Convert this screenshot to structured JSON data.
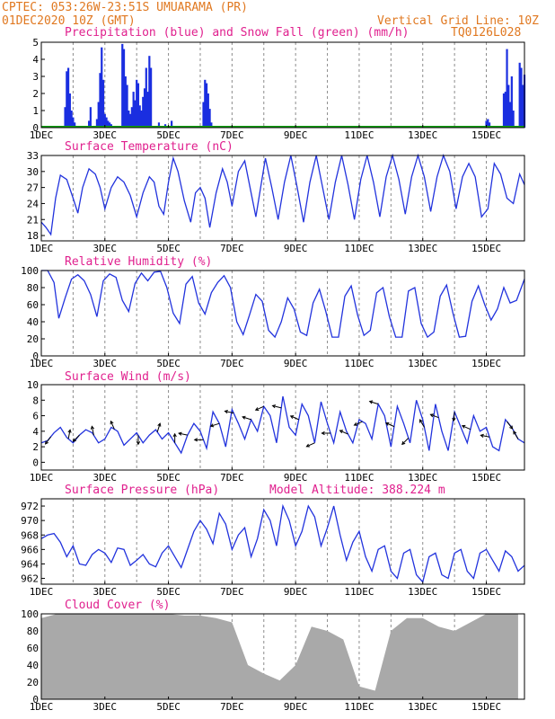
{
  "header": {
    "line1": "CPTEC:   053:26W-23:51S  UMUARAMA (PR)",
    "line2": "01DEC2020 10Z (GMT)",
    "grid_note": "Vertical Grid Line: 10Z",
    "code": "TQ0126L028"
  },
  "colors": {
    "header": "#e07820",
    "panel_title": "#e0208e",
    "line": "#2233dd",
    "precip": "#1a2ee0",
    "snow": "#10a010",
    "cloud": "#a9a9a9",
    "wind_arrow": "#000000"
  },
  "x_axis": {
    "labels": [
      "1DEC",
      "3DEC",
      "5DEC",
      "7DEC",
      "9DEC",
      "11DEC",
      "13DEC",
      "15DEC"
    ],
    "label_days": [
      0,
      2,
      4,
      6,
      8,
      10,
      12,
      14
    ],
    "grid_days": [
      1,
      2,
      3,
      4,
      5,
      6,
      7,
      8,
      9,
      10,
      11,
      12,
      13,
      14
    ],
    "range_days": [
      0,
      15.2
    ]
  },
  "chart_data": [
    {
      "type": "bar",
      "title": "Precipitation (blue) and Snow Fall (green) (mm/h)",
      "ylim": [
        0,
        5
      ],
      "yticks": [
        0,
        1,
        2,
        3,
        4,
        5
      ],
      "x_unit": "days since 01DEC2020 10Z",
      "series": [
        {
          "name": "Precipitation",
          "x": [
            0.75,
            0.8,
            0.85,
            0.9,
            0.95,
            1.0,
            1.05,
            1.5,
            1.55,
            1.75,
            1.8,
            1.85,
            1.9,
            1.95,
            2.0,
            2.05,
            2.1,
            2.15,
            2.2,
            2.55,
            2.6,
            2.65,
            2.7,
            2.75,
            2.8,
            2.85,
            2.9,
            2.95,
            3.0,
            3.05,
            3.1,
            3.15,
            3.2,
            3.25,
            3.3,
            3.35,
            3.4,
            3.45,
            3.7,
            3.9,
            4.1,
            5.1,
            5.15,
            5.2,
            5.25,
            5.3,
            5.35,
            14.0,
            14.05,
            14.1,
            14.55,
            14.6,
            14.65,
            14.7,
            14.75,
            14.8,
            14.85,
            15.05,
            15.1,
            15.15,
            15.2
          ],
          "values": [
            1.2,
            3.3,
            3.5,
            2.0,
            1.0,
            0.6,
            0.3,
            0.4,
            1.2,
            0.5,
            1.5,
            3.2,
            4.7,
            2.8,
            0.8,
            0.6,
            0.4,
            0.3,
            0.2,
            4.9,
            4.6,
            3.0,
            2.5,
            1.0,
            0.8,
            1.2,
            2.1,
            1.6,
            2.8,
            2.6,
            1.3,
            1.0,
            1.8,
            2.3,
            3.5,
            2.1,
            4.2,
            3.5,
            0.3,
            0.2,
            0.4,
            1.5,
            2.8,
            2.6,
            2.0,
            1.1,
            0.3,
            0.4,
            0.5,
            0.3,
            2.0,
            2.1,
            4.6,
            2.5,
            1.5,
            3.0,
            1.0,
            3.8,
            3.5,
            2.5,
            3.1
          ]
        },
        {
          "name": "Snow Fall",
          "x": [
            0,
            15.2
          ],
          "values": [
            0,
            0
          ]
        }
      ]
    },
    {
      "type": "line",
      "title": "Surface Temperature (nC)",
      "ylim": [
        17,
        33
      ],
      "yticks": [
        18,
        21,
        24,
        27,
        30,
        33
      ],
      "x": [
        0,
        0.15,
        0.3,
        0.45,
        0.6,
        0.8,
        1.0,
        1.15,
        1.3,
        1.5,
        1.7,
        1.85,
        2.0,
        2.2,
        2.4,
        2.6,
        2.8,
        3.0,
        3.2,
        3.4,
        3.55,
        3.7,
        3.85,
        4.0,
        4.15,
        4.3,
        4.5,
        4.7,
        4.85,
        5.0,
        5.15,
        5.3,
        5.5,
        5.7,
        5.85,
        6.0,
        6.2,
        6.4,
        6.6,
        6.75,
        6.9,
        7.05,
        7.25,
        7.45,
        7.65,
        7.85,
        8.05,
        8.25,
        8.45,
        8.65,
        8.85,
        9.05,
        9.25,
        9.45,
        9.65,
        9.85,
        10.05,
        10.25,
        10.45,
        10.65,
        10.85,
        11.05,
        11.25,
        11.45,
        11.65,
        11.85,
        12.05,
        12.25,
        12.45,
        12.65,
        12.85,
        13.05,
        13.25,
        13.45,
        13.65,
        13.85,
        14.05,
        14.25,
        14.45,
        14.65,
        14.85,
        15.05,
        15.2
      ],
      "values": [
        20.5,
        19.5,
        18.2,
        25.0,
        29.3,
        28.5,
        25.0,
        22.2,
        27.0,
        30.5,
        29.5,
        27.0,
        23.0,
        27.0,
        29.0,
        28.0,
        25.5,
        21.5,
        26.0,
        29.0,
        28.0,
        23.5,
        22.0,
        28.0,
        32.5,
        30.0,
        24.5,
        20.5,
        26.0,
        27.0,
        25.0,
        19.5,
        26.0,
        30.5,
        28.0,
        23.5,
        30.0,
        32.0,
        26.0,
        21.5,
        27.0,
        32.5,
        27.0,
        21.0,
        28.0,
        33.0,
        27.0,
        20.5,
        28.0,
        33.0,
        27.0,
        21.0,
        28.0,
        33.0,
        27.5,
        21.0,
        28.5,
        33.0,
        28.0,
        21.5,
        29.0,
        33.0,
        28.5,
        22.0,
        29.0,
        33.0,
        29.0,
        22.5,
        29.0,
        33.0,
        30.0,
        23.0,
        29.0,
        31.5,
        29.0,
        21.5,
        23.0,
        31.5,
        29.5,
        25.0,
        24.0,
        29.5,
        27.5
      ]
    },
    {
      "type": "line",
      "title": "Relative Humidity (%)",
      "ylim": [
        0,
        100
      ],
      "yticks": [
        0,
        20,
        40,
        60,
        80,
        100
      ],
      "x": [
        0,
        0.2,
        0.4,
        0.55,
        0.75,
        0.95,
        1.15,
        1.35,
        1.55,
        1.75,
        1.95,
        2.15,
        2.35,
        2.55,
        2.75,
        2.95,
        3.15,
        3.35,
        3.55,
        3.75,
        3.95,
        4.15,
        4.35,
        4.55,
        4.75,
        4.95,
        5.15,
        5.35,
        5.55,
        5.75,
        5.95,
        6.15,
        6.35,
        6.55,
        6.75,
        6.95,
        7.15,
        7.35,
        7.55,
        7.75,
        7.95,
        8.15,
        8.35,
        8.55,
        8.75,
        8.95,
        9.15,
        9.35,
        9.55,
        9.75,
        9.95,
        10.15,
        10.35,
        10.55,
        10.75,
        10.95,
        11.15,
        11.35,
        11.55,
        11.75,
        11.95,
        12.15,
        12.35,
        12.55,
        12.75,
        12.95,
        13.15,
        13.35,
        13.55,
        13.75,
        13.95,
        14.15,
        14.35,
        14.55,
        14.75,
        14.95,
        15.2
      ],
      "values": [
        100,
        100,
        86,
        44,
        68,
        90,
        95,
        88,
        72,
        46,
        88,
        96,
        92,
        65,
        52,
        85,
        97,
        88,
        98,
        99,
        80,
        50,
        38,
        84,
        93,
        62,
        49,
        74,
        86,
        94,
        80,
        40,
        25,
        48,
        72,
        64,
        30,
        22,
        40,
        68,
        55,
        28,
        24,
        62,
        78,
        52,
        22,
        22,
        70,
        82,
        48,
        24,
        30,
        74,
        80,
        46,
        22,
        22,
        76,
        80,
        38,
        22,
        28,
        70,
        83,
        50,
        22,
        23,
        64,
        82,
        60,
        42,
        55,
        80,
        62,
        65,
        90
      ]
    },
    {
      "type": "line",
      "title": "Surface Wind (m/s)",
      "ylim": [
        -1,
        10
      ],
      "yticks": [
        0,
        2,
        4,
        6,
        8,
        10
      ],
      "x": [
        0,
        0.2,
        0.4,
        0.6,
        0.8,
        1.0,
        1.2,
        1.4,
        1.6,
        1.8,
        2.0,
        2.2,
        2.4,
        2.6,
        2.8,
        3.0,
        3.2,
        3.4,
        3.6,
        3.8,
        4.0,
        4.2,
        4.4,
        4.6,
        4.8,
        5.0,
        5.2,
        5.4,
        5.6,
        5.8,
        6.0,
        6.2,
        6.4,
        6.6,
        6.8,
        7.0,
        7.2,
        7.4,
        7.6,
        7.8,
        8.0,
        8.2,
        8.4,
        8.6,
        8.8,
        9.0,
        9.2,
        9.4,
        9.6,
        9.8,
        10.0,
        10.2,
        10.4,
        10.6,
        10.8,
        11.0,
        11.2,
        11.4,
        11.6,
        11.8,
        12.0,
        12.2,
        12.4,
        12.6,
        12.8,
        13.0,
        13.2,
        13.4,
        13.6,
        13.8,
        14.0,
        14.2,
        14.4,
        14.6,
        14.8,
        15.0,
        15.2
      ],
      "values": [
        2.5,
        2.8,
        3.8,
        4.5,
        3.2,
        2.5,
        3.5,
        4.2,
        3.8,
        2.5,
        3.0,
        4.5,
        4.0,
        2.2,
        3.0,
        3.8,
        2.5,
        3.5,
        4.2,
        3.0,
        3.8,
        2.5,
        1.2,
        3.5,
        5.0,
        4.0,
        1.8,
        6.5,
        5.0,
        2.0,
        6.8,
        5.0,
        3.0,
        5.5,
        4.0,
        7.2,
        6.0,
        2.5,
        8.5,
        4.5,
        3.5,
        7.5,
        6.0,
        2.5,
        7.8,
        5.0,
        2.5,
        6.5,
        4.0,
        2.5,
        5.5,
        5.0,
        3.0,
        7.5,
        6.0,
        2.0,
        7.2,
        5.0,
        2.5,
        8.0,
        5.5,
        1.5,
        7.5,
        4.0,
        1.5,
        6.5,
        4.5,
        2.5,
        6.0,
        4.0,
        4.5,
        2.0,
        1.5,
        5.5,
        4.5,
        3.0,
        2.5
      ],
      "arrows": [
        {
          "x": 0.3,
          "u": -0.6,
          "v": -0.8
        },
        {
          "x": 0.85,
          "u": 0.2,
          "v": 1.0
        },
        {
          "x": 1.2,
          "u": -0.7,
          "v": -0.7
        },
        {
          "x": 1.65,
          "u": -0.2,
          "v": 1.0
        },
        {
          "x": 2.3,
          "u": -0.4,
          "v": 0.9
        },
        {
          "x": 3.05,
          "u": 0.0,
          "v": -1.0
        },
        {
          "x": 3.65,
          "u": 0.3,
          "v": 0.95
        },
        {
          "x": 4.2,
          "u": 0.0,
          "v": 1.0
        },
        {
          "x": 4.6,
          "u": -0.97,
          "v": 0.2
        },
        {
          "x": 5.1,
          "u": -0.98,
          "v": 0.0
        },
        {
          "x": 5.6,
          "u": -0.95,
          "v": -0.3
        },
        {
          "x": 6.05,
          "u": -0.97,
          "v": 0.2
        },
        {
          "x": 6.6,
          "u": -0.95,
          "v": 0.3
        },
        {
          "x": 7.0,
          "u": -0.9,
          "v": -0.4
        },
        {
          "x": 7.55,
          "u": -0.97,
          "v": 0.25
        },
        {
          "x": 8.1,
          "u": -0.9,
          "v": 0.4
        },
        {
          "x": 8.6,
          "u": -0.9,
          "v": -0.4
        },
        {
          "x": 9.1,
          "u": -0.97,
          "v": 0.0
        },
        {
          "x": 9.65,
          "u": -0.9,
          "v": 0.4
        },
        {
          "x": 10.1,
          "u": -0.9,
          "v": -0.4
        },
        {
          "x": 10.6,
          "u": -0.95,
          "v": 0.3
        },
        {
          "x": 11.1,
          "u": -0.9,
          "v": 0.4
        },
        {
          "x": 11.55,
          "u": -0.7,
          "v": -0.7
        },
        {
          "x": 12.05,
          "u": -0.5,
          "v": 0.85
        },
        {
          "x": 12.5,
          "u": -0.9,
          "v": 0.35
        },
        {
          "x": 13.0,
          "u": -0.1,
          "v": -1.0
        },
        {
          "x": 13.5,
          "u": -0.9,
          "v": 0.4
        },
        {
          "x": 14.1,
          "u": -0.97,
          "v": 0.2
        },
        {
          "x": 14.65,
          "u": 0.6,
          "v": -0.8
        },
        {
          "x": 15.0,
          "u": -0.5,
          "v": 0.85
        }
      ]
    },
    {
      "type": "line",
      "title": "Surface Pressure (hPa)",
      "note": "Model Altitude: 388.224 m",
      "ylim": [
        961.2,
        973
      ],
      "yticks": [
        962,
        964,
        966,
        968,
        970,
        972
      ],
      "x": [
        0,
        0.2,
        0.4,
        0.6,
        0.8,
        1.0,
        1.2,
        1.4,
        1.6,
        1.8,
        2.0,
        2.2,
        2.4,
        2.6,
        2.8,
        3.0,
        3.2,
        3.4,
        3.6,
        3.8,
        4.0,
        4.2,
        4.4,
        4.6,
        4.8,
        5.0,
        5.2,
        5.4,
        5.6,
        5.8,
        6.0,
        6.2,
        6.4,
        6.6,
        6.8,
        7.0,
        7.2,
        7.4,
        7.6,
        7.8,
        8.0,
        8.2,
        8.4,
        8.6,
        8.8,
        9.0,
        9.2,
        9.4,
        9.6,
        9.8,
        10.0,
        10.2,
        10.4,
        10.6,
        10.8,
        11.0,
        11.2,
        11.4,
        11.6,
        11.8,
        12.0,
        12.2,
        12.4,
        12.6,
        12.8,
        13.0,
        13.2,
        13.4,
        13.6,
        13.8,
        14.0,
        14.2,
        14.4,
        14.6,
        14.8,
        15.0,
        15.2
      ],
      "values": [
        967.5,
        968.0,
        968.2,
        967.0,
        965.0,
        966.5,
        964.0,
        963.8,
        965.3,
        966.0,
        965.5,
        964.2,
        966.2,
        966.0,
        963.8,
        964.5,
        965.3,
        964.0,
        963.6,
        965.5,
        966.5,
        965.0,
        963.5,
        966.0,
        968.5,
        970.0,
        968.8,
        966.8,
        971.0,
        969.5,
        966.0,
        968.0,
        969.0,
        965.0,
        967.5,
        971.5,
        970.0,
        966.5,
        972.0,
        970.0,
        966.5,
        968.5,
        972.0,
        970.5,
        966.5,
        969.0,
        972.0,
        968.0,
        964.5,
        967.0,
        968.5,
        965.0,
        963.0,
        966.0,
        966.5,
        963.0,
        962.0,
        965.5,
        966.0,
        962.5,
        961.5,
        965.0,
        965.5,
        962.5,
        962.0,
        965.5,
        966.0,
        963.0,
        962.0,
        965.5,
        966.0,
        964.5,
        963.0,
        965.8,
        965.0,
        963.0,
        963.8
      ]
    },
    {
      "type": "bar",
      "title": "Cloud Cover (%)",
      "ylim": [
        0,
        100
      ],
      "yticks": [
        0,
        20,
        40,
        60,
        80,
        100
      ],
      "x": [
        0,
        0.5,
        1.0,
        1.5,
        2.0,
        2.5,
        3.0,
        3.5,
        4.0,
        4.5,
        5.0,
        5.5,
        6.0,
        6.5,
        7.0,
        7.5,
        8.0,
        8.5,
        9.0,
        9.5,
        10.0,
        10.5,
        11.0,
        11.5,
        12.0,
        12.5,
        13.0,
        13.5,
        14.0,
        14.5,
        15.0
      ],
      "values": [
        95,
        100,
        100,
        100,
        100,
        100,
        100,
        100,
        100,
        98,
        98,
        95,
        90,
        40,
        30,
        22,
        40,
        85,
        80,
        70,
        15,
        10,
        80,
        95,
        95,
        85,
        80,
        90,
        100,
        100,
        100
      ]
    }
  ]
}
